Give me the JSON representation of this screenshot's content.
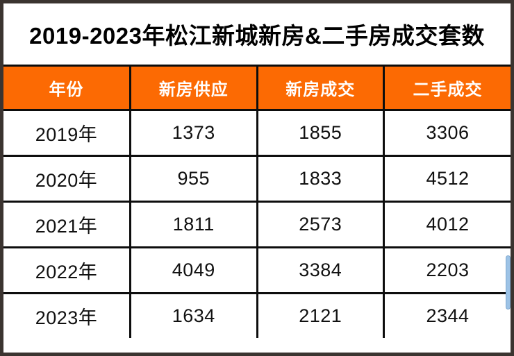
{
  "title": "2019-2023年松江新城新房&二手房成交套数",
  "colors": {
    "header_bg": "#FC6A03",
    "header_text": "#FFFFFF",
    "grid_line": "#0D0D0D",
    "outer_border": "#3B3430",
    "title_text": "#000000",
    "cell_text": "#111111",
    "scroll_thumb": "#9DC3E6"
  },
  "chart_data": {
    "type": "table",
    "title": "2019-2023年松江新城新房&二手房成交套数",
    "columns": [
      "年份",
      "新房供应",
      "新房成交",
      "二手成交"
    ],
    "rows": [
      [
        "2019年",
        "1373",
        "1855",
        "3306"
      ],
      [
        "2020年",
        "955",
        "1833",
        "4512"
      ],
      [
        "2021年",
        "1811",
        "2573",
        "4012"
      ],
      [
        "2022年",
        "4049",
        "3384",
        "2203"
      ],
      [
        "2023年",
        "1634",
        "2121",
        "2344"
      ]
    ]
  }
}
